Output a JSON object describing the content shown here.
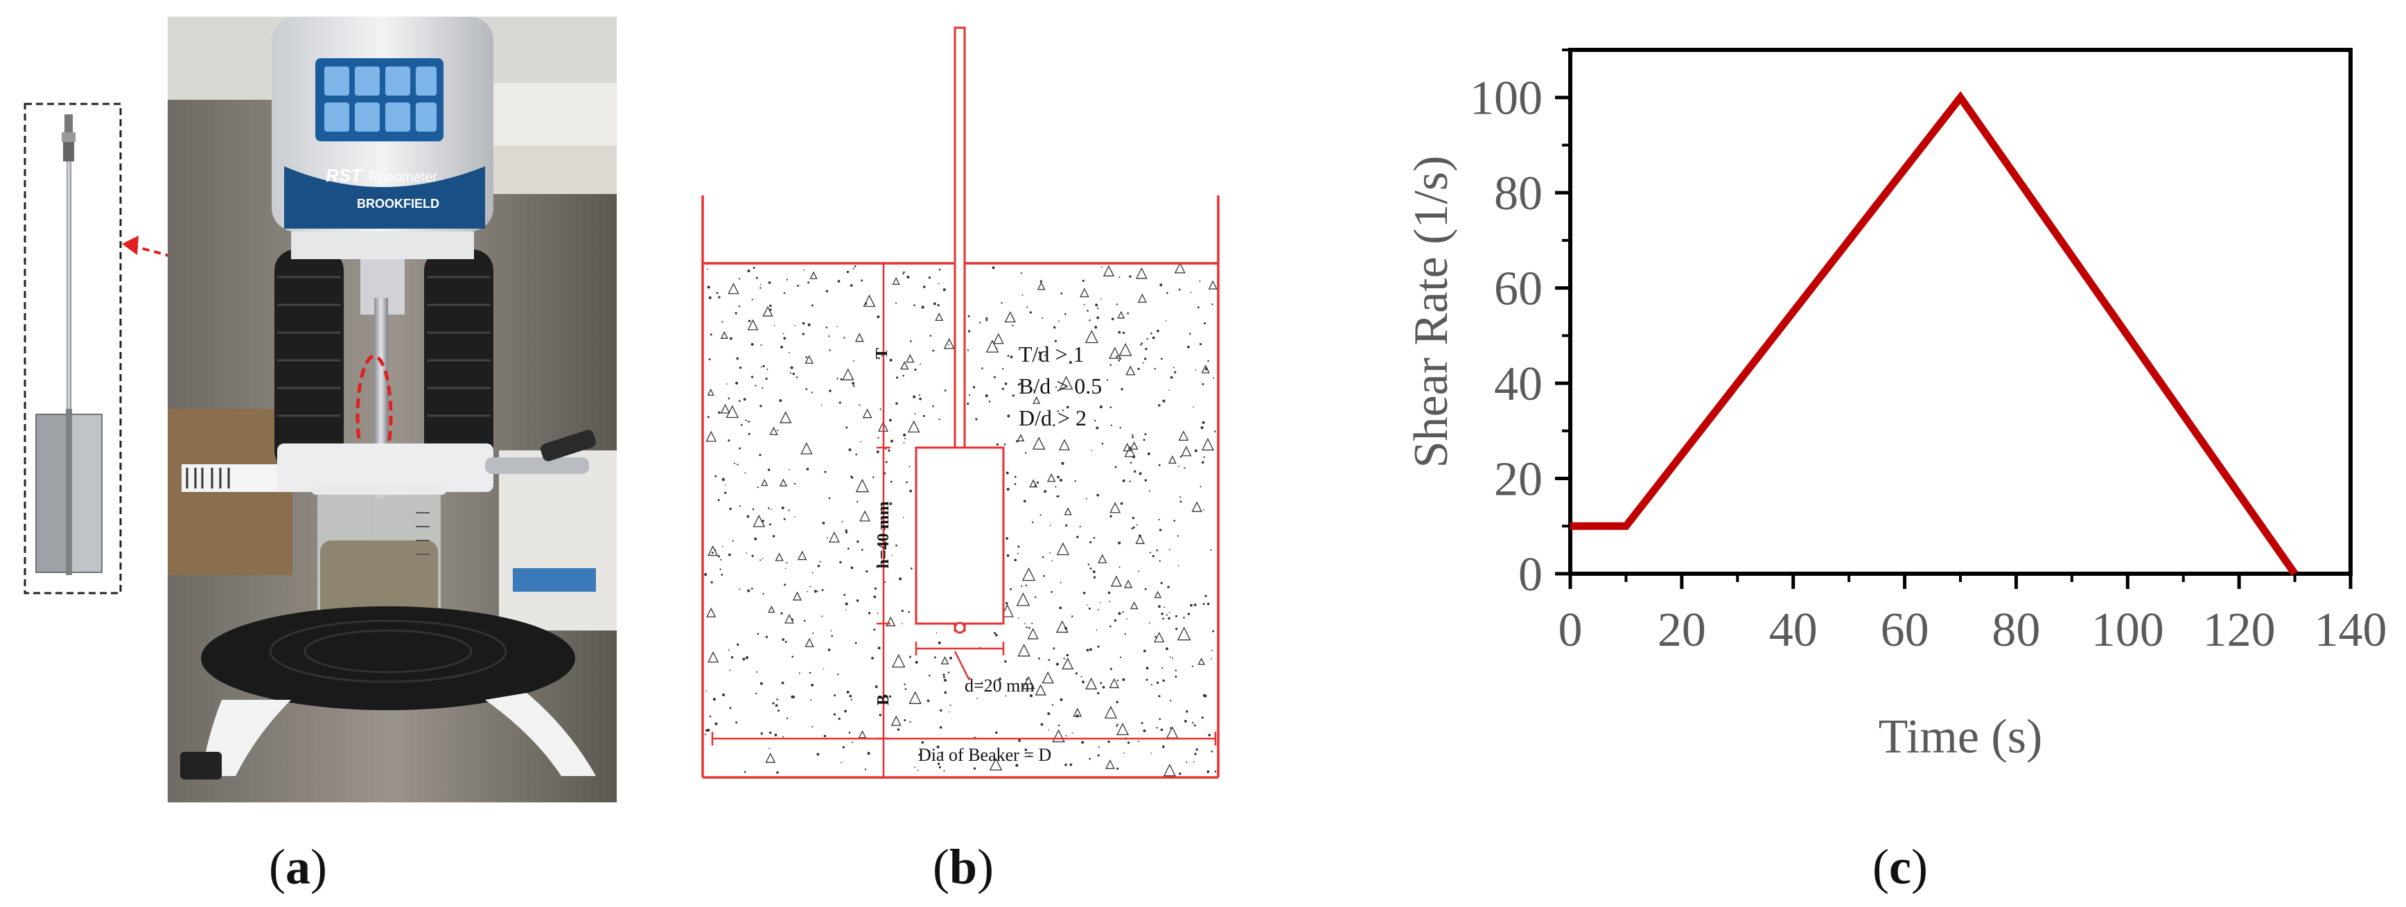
{
  "panel_a": {
    "device_brand": "BROOKFIELD",
    "device_model": "RST",
    "device_type": "Rheometer"
  },
  "panel_b": {
    "labels": {
      "t": "T",
      "b": "B",
      "h": "h=40 mm",
      "d": "d=20 mm",
      "dia": "Dia of Beaker = D",
      "cond1": "T/d > 1",
      "cond2": "B/d > 0.5",
      "cond3": "D/d > 2"
    }
  },
  "captions": [
    {
      "open": "(",
      "letter": "a",
      "close": ")"
    },
    {
      "open": "(",
      "letter": "b",
      "close": ")"
    },
    {
      "open": "(",
      "letter": "c",
      "close": ")"
    }
  ],
  "chart_data": {
    "type": "line",
    "title": "",
    "xlabel": "Time (s)",
    "ylabel": "Shear Rate (1/s)",
    "xlim": [
      0,
      140
    ],
    "ylim": [
      0,
      110
    ],
    "xticks": [
      0,
      20,
      40,
      60,
      80,
      100,
      120,
      140
    ],
    "yticks": [
      0,
      20,
      40,
      60,
      80,
      100
    ],
    "grid": false,
    "line_color": "#c00000",
    "series": [
      {
        "x": [
          0,
          10,
          70,
          130
        ],
        "y": [
          10,
          10,
          100,
          0
        ]
      }
    ]
  }
}
